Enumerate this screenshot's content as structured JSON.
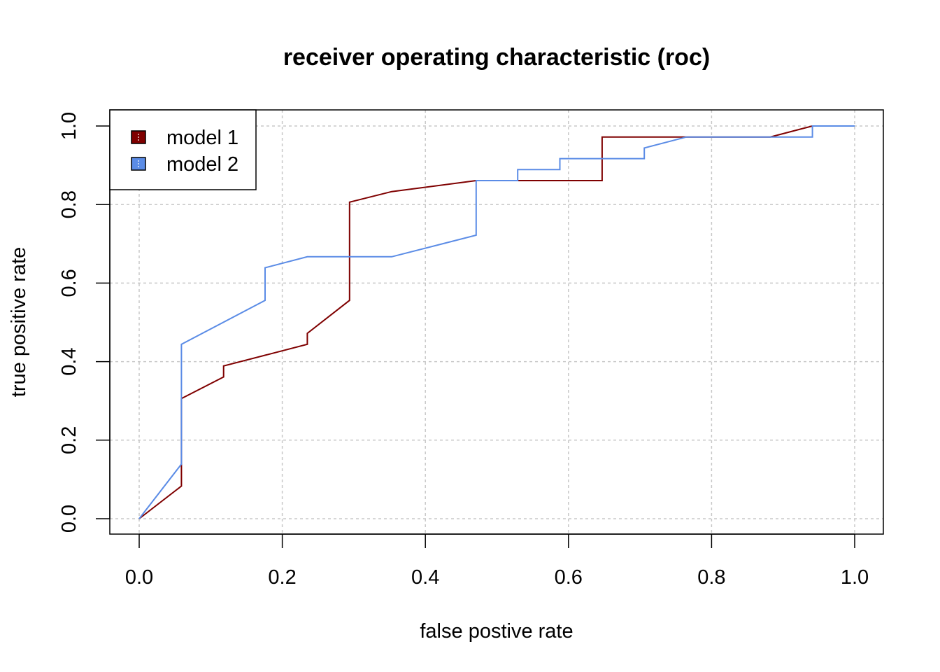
{
  "chart_data": {
    "type": "line",
    "title": "receiver operating characteristic (roc)",
    "xlabel": "false postive rate",
    "ylabel": "true positive rate",
    "xlim": [
      0,
      1
    ],
    "ylim": [
      0,
      1
    ],
    "xticks": [
      "0.0",
      "0.2",
      "0.4",
      "0.6",
      "0.8",
      "1.0"
    ],
    "yticks": [
      "0.0",
      "0.2",
      "0.4",
      "0.6",
      "0.8",
      "1.0"
    ],
    "grid": true,
    "legend_position": "top-left",
    "series": [
      {
        "name": "model 1",
        "color": "#7f0000",
        "x": [
          0.0,
          0.059,
          0.059,
          0.118,
          0.118,
          0.235,
          0.235,
          0.294,
          0.294,
          0.353,
          0.471,
          0.529,
          0.647,
          0.647,
          0.882,
          0.941,
          1.0
        ],
        "y": [
          0.0,
          0.083,
          0.306,
          0.361,
          0.389,
          0.444,
          0.472,
          0.556,
          0.806,
          0.833,
          0.861,
          0.861,
          0.861,
          0.972,
          0.972,
          1.0,
          1.0
        ]
      },
      {
        "name": "model 2",
        "color": "#5b8ce6",
        "x": [
          0.0,
          0.059,
          0.059,
          0.176,
          0.176,
          0.235,
          0.353,
          0.471,
          0.471,
          0.529,
          0.529,
          0.588,
          0.588,
          0.706,
          0.706,
          0.765,
          0.941,
          0.941,
          1.0
        ],
        "y": [
          0.0,
          0.139,
          0.444,
          0.556,
          0.639,
          0.667,
          0.667,
          0.722,
          0.861,
          0.861,
          0.889,
          0.889,
          0.917,
          0.917,
          0.944,
          0.972,
          0.972,
          1.0,
          1.0
        ]
      }
    ]
  }
}
